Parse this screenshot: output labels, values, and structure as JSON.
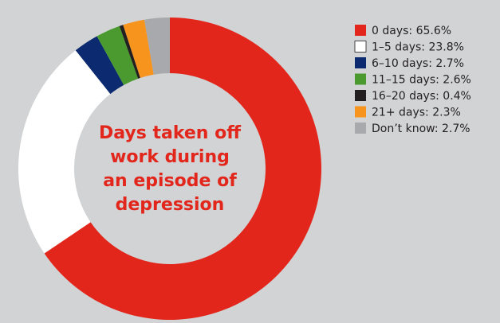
{
  "chart_data": {
    "type": "donut",
    "title": [
      "Days taken off",
      "work during",
      "an episode of",
      "depression"
    ],
    "categories": [
      "0 days: 65.6%",
      "1–5 days: 23.8%",
      "6–10 days: 2.7%",
      "11–15 days: 2.6%",
      "16–20 days: 0.4%",
      "21+ days: 2.3%",
      "Don’t know: 2.7%"
    ],
    "values": [
      65.6,
      23.8,
      2.7,
      2.6,
      0.4,
      2.3,
      2.7
    ],
    "colors": [
      "#e3261c",
      "#ffffff",
      "#0b2a6f",
      "#4b9a2f",
      "#231f20",
      "#f7941d",
      "#a7a9ac"
    ],
    "legend": "right"
  }
}
